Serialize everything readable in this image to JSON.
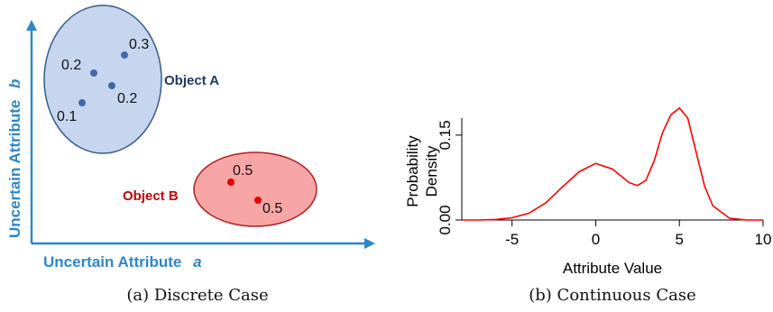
{
  "colors": {
    "axis_blue": "#2e86c8",
    "object_a_fill": "#c6d6ee",
    "object_a_stroke": "#3a5a8a",
    "object_a_label": "#1f3864",
    "point_a": "#3f6aa8",
    "object_b_fill": "#f7a5a5",
    "object_b_stroke": "#b02020",
    "object_b_label": "#c00000",
    "point_b": "#e00000",
    "curve": "#ff0000"
  },
  "discrete": {
    "x_axis_label": "Uncertain Attribute",
    "x_axis_var": "a",
    "y_axis_label": "Uncertain Attribute",
    "y_axis_var": "b",
    "object_a": {
      "label": "Object A",
      "points": [
        {
          "prob": "0.3"
        },
        {
          "prob": "0.2"
        },
        {
          "prob": "0.2"
        },
        {
          "prob": "0.1"
        }
      ]
    },
    "object_b": {
      "label": "Object B",
      "points": [
        {
          "prob": "0.5"
        },
        {
          "prob": "0.5"
        }
      ]
    },
    "caption": "(a) Discrete Case"
  },
  "chart_data": {
    "type": "line",
    "xlabel": "Attribute Value",
    "ylabel_line1": "Probability",
    "ylabel_line2": "Density",
    "xlim": [
      -8,
      10
    ],
    "ylim": [
      0,
      0.18
    ],
    "x_ticks": [
      -5,
      0,
      5,
      10
    ],
    "x_tick_labels": [
      "-5",
      "0",
      "5",
      "10"
    ],
    "y_ticks": [
      0.0,
      0.15
    ],
    "y_tick_labels": [
      "0.00",
      "0.15"
    ],
    "series": [
      {
        "x": [
          -8,
          -7,
          -6,
          -5,
          -4,
          -3,
          -2,
          -1,
          0,
          1,
          1.5,
          2,
          2.5,
          3,
          3.5,
          4,
          4.5,
          5,
          5.5,
          6,
          6.5,
          7,
          8,
          9,
          10
        ],
        "y": [
          0.0,
          0.0,
          0.001,
          0.004,
          0.012,
          0.03,
          0.058,
          0.085,
          0.1,
          0.09,
          0.078,
          0.066,
          0.061,
          0.07,
          0.105,
          0.155,
          0.186,
          0.2,
          0.18,
          0.12,
          0.06,
          0.025,
          0.003,
          0.0,
          0.0
        ]
      }
    ],
    "grid": false,
    "caption": "(b) Continuous Case"
  }
}
